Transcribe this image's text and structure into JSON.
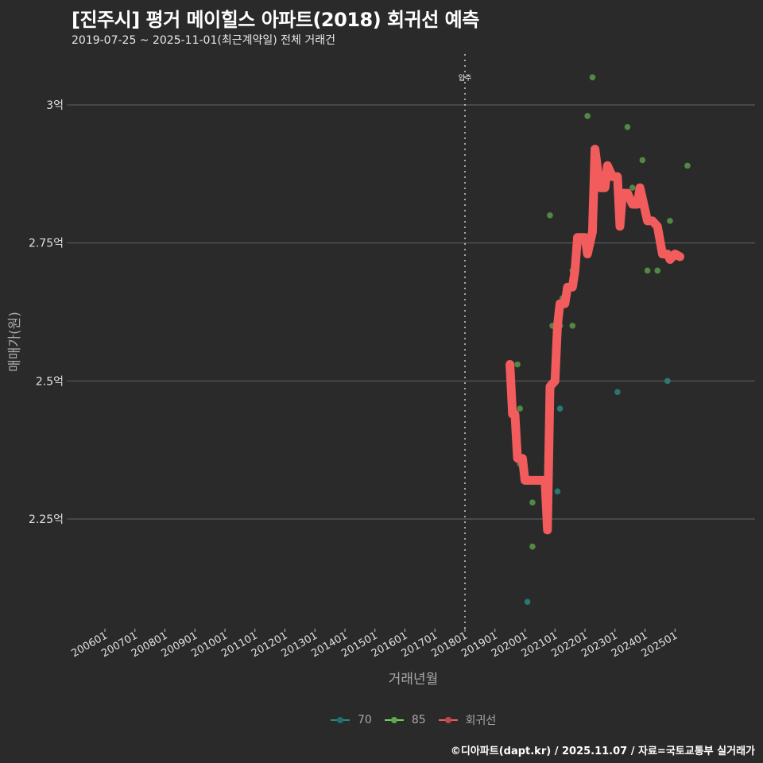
{
  "header": {
    "title": "[진주시] 평거 메이힐스 아파트(2018) 회귀선 예측",
    "subtitle": "2019-07-25 ~ 2025-11-01(최근계약일) 전체 거래건"
  },
  "axes": {
    "ylabel": "매매가(원)",
    "xlabel": "거래년월"
  },
  "legend": [
    {
      "label": "70",
      "color": "#1f8a8a"
    },
    {
      "label": "85",
      "color": "#6fcf5a"
    },
    {
      "label": "회귀선",
      "color": "#f05a5a"
    }
  ],
  "caption": "©디아파트(dapt.kr) / 2025.11.07 / 자료=국토교통부 실거래가",
  "colors": {
    "background": "#2a2a2b",
    "grid": "#5a5a5a",
    "regression": "#f25c5c",
    "type70": "#2a7f7a",
    "type85": "#5fa84e"
  },
  "chart_data": {
    "type": "line",
    "title": "[진주시] 평거 메이힐스 아파트(2018) 회귀선 예측",
    "subtitle": "2019-07-25 ~ 2025-11-01(최근계약일) 전체 거래건",
    "xlabel": "거래년월",
    "ylabel": "매매가(원)",
    "ylim": [
      2.05,
      3.08
    ],
    "yunit": "억",
    "yticks": [
      {
        "value": 2.25,
        "label": "2.25억"
      },
      {
        "value": 2.5,
        "label": "2.5억"
      },
      {
        "value": 2.75,
        "label": "2.75억"
      },
      {
        "value": 3.0,
        "label": "3억"
      }
    ],
    "xticks": [
      "200601",
      "200701",
      "200801",
      "200901",
      "201001",
      "201101",
      "201201",
      "201301",
      "201401",
      "201501",
      "201601",
      "201701",
      "201801",
      "201901",
      "202001",
      "202101",
      "202201",
      "202301",
      "202401",
      "202501"
    ],
    "grid": "horizontal",
    "legend_position": "bottom",
    "annotation": {
      "label": "입주",
      "x": "201801",
      "style": "dotted vertical line"
    },
    "series": [
      {
        "name": "회귀선",
        "type": "line",
        "points": [
          [
            "2019-07",
            2.53
          ],
          [
            "2019-08",
            2.44
          ],
          [
            "2019-09",
            2.44
          ],
          [
            "2019-10",
            2.36
          ],
          [
            "2019-12",
            2.36
          ],
          [
            "2020-01",
            2.32
          ],
          [
            "2020-09",
            2.32
          ],
          [
            "2020-10",
            2.23
          ],
          [
            "2020-11",
            2.49
          ],
          [
            "2021-01",
            2.5
          ],
          [
            "2021-02",
            2.6
          ],
          [
            "2021-03",
            2.64
          ],
          [
            "2021-05",
            2.64
          ],
          [
            "2021-06",
            2.67
          ],
          [
            "2021-08",
            2.67
          ],
          [
            "2021-09",
            2.7
          ],
          [
            "2021-10",
            2.76
          ],
          [
            "2022-01",
            2.76
          ],
          [
            "2022-02",
            2.73
          ],
          [
            "2022-04",
            2.77
          ],
          [
            "2022-05",
            2.92
          ],
          [
            "2022-07",
            2.85
          ],
          [
            "2022-09",
            2.85
          ],
          [
            "2022-10",
            2.89
          ],
          [
            "2022-12",
            2.87
          ],
          [
            "2023-02",
            2.87
          ],
          [
            "2023-03",
            2.78
          ],
          [
            "2023-04",
            2.84
          ],
          [
            "2023-06",
            2.84
          ],
          [
            "2023-08",
            2.82
          ],
          [
            "2023-10",
            2.82
          ],
          [
            "2023-11",
            2.85
          ],
          [
            "2024-01",
            2.81
          ],
          [
            "2024-02",
            2.79
          ],
          [
            "2024-04",
            2.79
          ],
          [
            "2024-06",
            2.78
          ],
          [
            "2024-08",
            2.73
          ],
          [
            "2024-10",
            2.73
          ],
          [
            "2024-11",
            2.72
          ],
          [
            "2025-01",
            2.73
          ],
          [
            "2025-03",
            2.725
          ]
        ]
      },
      {
        "name": "85",
        "type": "scatter",
        "points": [
          [
            "2019-10",
            2.53
          ],
          [
            "2019-11",
            2.45
          ],
          [
            "2019-11",
            2.35
          ],
          [
            "2020-04",
            2.28
          ],
          [
            "2020-04",
            2.2
          ],
          [
            "2020-11",
            2.8
          ],
          [
            "2020-12",
            2.6
          ],
          [
            "2021-03",
            2.6
          ],
          [
            "2021-04",
            2.65
          ],
          [
            "2021-08",
            2.7
          ],
          [
            "2021-08",
            2.6
          ],
          [
            "2022-02",
            2.98
          ],
          [
            "2022-04",
            3.05
          ],
          [
            "2023-06",
            2.96
          ],
          [
            "2023-08",
            2.85
          ],
          [
            "2023-12",
            2.9
          ],
          [
            "2024-02",
            2.7
          ],
          [
            "2024-06",
            2.7
          ],
          [
            "2024-11",
            2.79
          ],
          [
            "2025-06",
            2.89
          ]
        ]
      },
      {
        "name": "70",
        "type": "scatter",
        "points": [
          [
            "2020-02",
            2.1
          ],
          [
            "2021-01",
            2.55
          ],
          [
            "2021-03",
            2.45
          ],
          [
            "2021-02",
            2.3
          ],
          [
            "2023-02",
            2.48
          ],
          [
            "2024-10",
            2.5
          ]
        ]
      }
    ]
  }
}
